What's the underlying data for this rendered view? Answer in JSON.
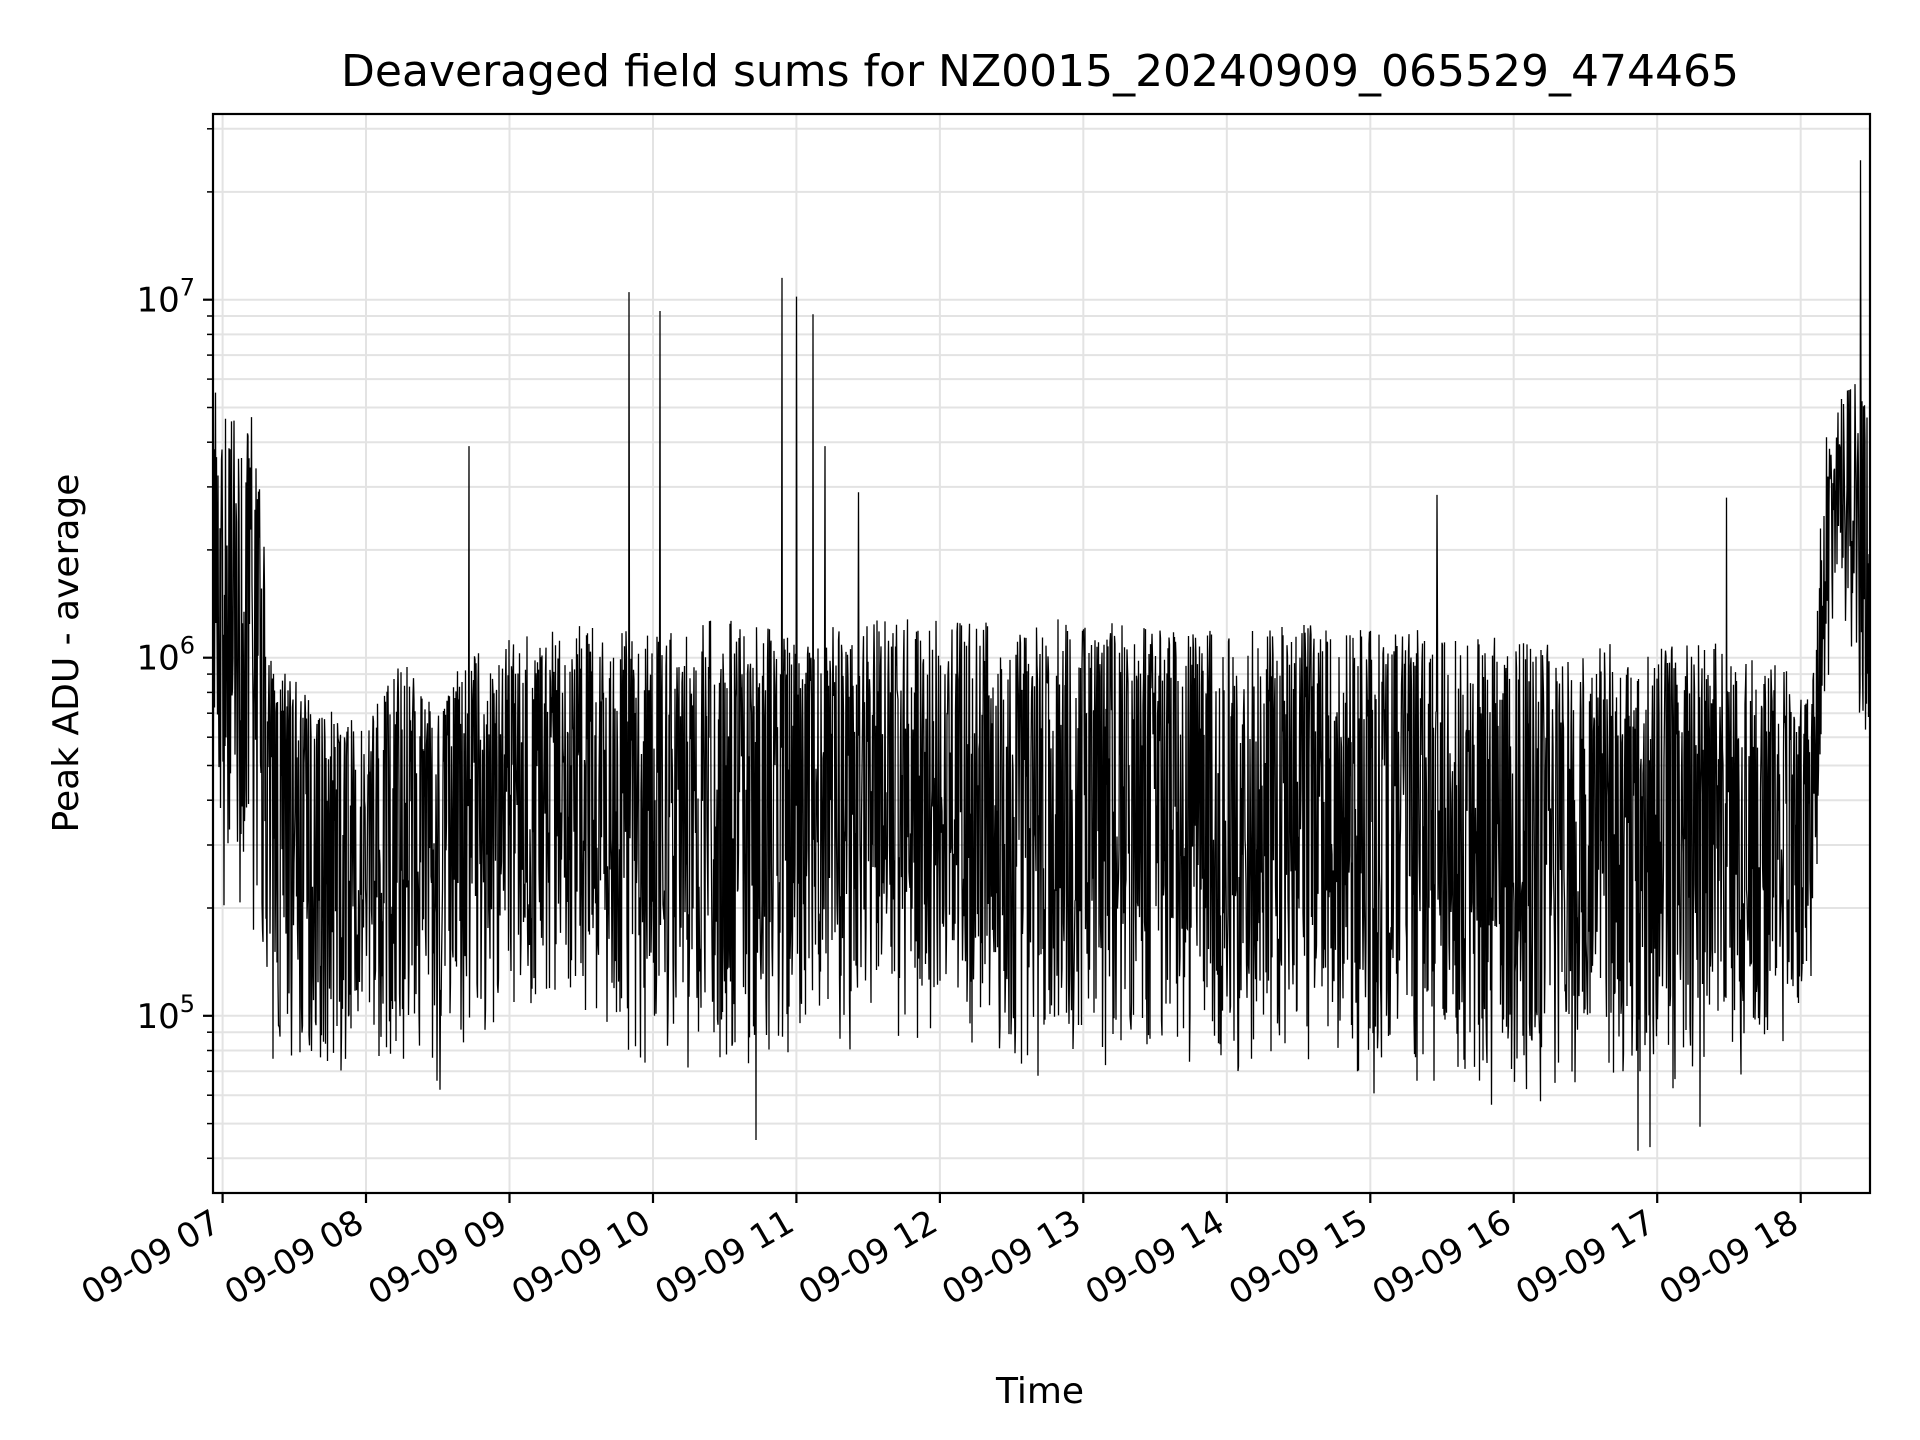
{
  "chart_data": {
    "type": "line",
    "title": "Deaveraged field sums for NZ0015_20240909_065529_474465",
    "xlabel": "Time",
    "ylabel": "Peak ADU - average",
    "yscale": "log",
    "ylim": [
      32000,
      33000000
    ],
    "xlim": [
      "2024-09-09 06:56",
      "2024-09-09 18:29"
    ],
    "grid": true,
    "x_ticks": [
      "09-09 07",
      "09-09 08",
      "09-09 09",
      "09-09 10",
      "09-09 11",
      "09-09 12",
      "09-09 13",
      "09-09 14",
      "09-09 15",
      "09-09 16",
      "09-09 17",
      "09-09 18"
    ],
    "y_ticks": [
      {
        "value": 100000,
        "base": "10",
        "exp": "5"
      },
      {
        "value": 1000000,
        "base": "10",
        "exp": "6"
      },
      {
        "value": 10000000,
        "base": "10",
        "exp": "7"
      }
    ],
    "series": [
      {
        "color": "#000000",
        "band_points": [
          {
            "t": "2024-09-09 06:56",
            "low": 150000,
            "high": 5500000
          },
          {
            "t": "2024-09-09 07:05",
            "low": 180000,
            "high": 4600000
          },
          {
            "t": "2024-09-09 07:15",
            "low": 170000,
            "high": 4000000
          },
          {
            "t": "2024-09-09 07:20",
            "low": 70000,
            "high": 1000000
          },
          {
            "t": "2024-09-09 07:40",
            "low": 65000,
            "high": 750000
          },
          {
            "t": "2024-09-09 08:00",
            "low": 70000,
            "high": 650000
          },
          {
            "t": "2024-09-09 08:15",
            "low": 65000,
            "high": 1000000
          },
          {
            "t": "2024-09-09 08:30",
            "low": 55000,
            "high": 700000
          },
          {
            "t": "2024-09-09 08:40",
            "low": 75000,
            "high": 1000000
          },
          {
            "t": "2024-09-09 09:00",
            "low": 85000,
            "high": 1150000
          },
          {
            "t": "2024-09-09 09:30",
            "low": 100000,
            "high": 1250000
          },
          {
            "t": "2024-09-09 10:00",
            "low": 60000,
            "high": 1150000
          },
          {
            "t": "2024-09-09 10:30",
            "low": 60000,
            "high": 1300000
          },
          {
            "t": "2024-09-09 11:00",
            "low": 70000,
            "high": 1150000
          },
          {
            "t": "2024-09-09 11:30",
            "low": 75000,
            "high": 1300000
          },
          {
            "t": "2024-09-09 12:00",
            "low": 80000,
            "high": 1300000
          },
          {
            "t": "2024-09-09 12:30",
            "low": 65000,
            "high": 1250000
          },
          {
            "t": "2024-09-09 13:00",
            "low": 65000,
            "high": 1300000
          },
          {
            "t": "2024-09-09 13:30",
            "low": 65000,
            "high": 1200000
          },
          {
            "t": "2024-09-09 14:00",
            "low": 60000,
            "high": 1200000
          },
          {
            "t": "2024-09-09 14:30",
            "low": 65000,
            "high": 1250000
          },
          {
            "t": "2024-09-09 15:00",
            "low": 58000,
            "high": 1200000
          },
          {
            "t": "2024-09-09 15:30",
            "low": 60000,
            "high": 1200000
          },
          {
            "t": "2024-09-09 16:00",
            "low": 50000,
            "high": 1150000
          },
          {
            "t": "2024-09-09 16:30",
            "low": 55000,
            "high": 1100000
          },
          {
            "t": "2024-09-09 17:00",
            "low": 55000,
            "high": 1100000
          },
          {
            "t": "2024-09-09 17:30",
            "low": 60000,
            "high": 1100000
          },
          {
            "t": "2024-09-09 18:05",
            "low": 85000,
            "high": 850000
          },
          {
            "t": "2024-09-09 18:10",
            "low": 700000,
            "high": 4000000
          },
          {
            "t": "2024-09-09 18:20",
            "low": 1000000,
            "high": 6500000
          },
          {
            "t": "2024-09-09 18:28",
            "low": 500000,
            "high": 5000000
          }
        ],
        "spikes": [
          {
            "t": "2024-09-09 06:57",
            "value": 5500000
          },
          {
            "t": "2024-09-09 07:12",
            "value": 4700000
          },
          {
            "t": "2024-09-09 08:43",
            "value": 3900000
          },
          {
            "t": "2024-09-09 09:50",
            "value": 10500000
          },
          {
            "t": "2024-09-09 10:03",
            "value": 9300000
          },
          {
            "t": "2024-09-09 10:54",
            "value": 11500000
          },
          {
            "t": "2024-09-09 11:00",
            "value": 10200000
          },
          {
            "t": "2024-09-09 11:07",
            "value": 9100000
          },
          {
            "t": "2024-09-09 11:12",
            "value": 3900000
          },
          {
            "t": "2024-09-09 11:26",
            "value": 2900000
          },
          {
            "t": "2024-09-09 15:28",
            "value": 2850000
          },
          {
            "t": "2024-09-09 17:29",
            "value": 2800000
          },
          {
            "t": "2024-09-09 18:25",
            "value": 24500000
          }
        ],
        "dips": [
          {
            "t": "2024-09-09 10:43",
            "value": 45000
          },
          {
            "t": "2024-09-09 16:52",
            "value": 42000
          },
          {
            "t": "2024-09-09 16:57",
            "value": 43000
          },
          {
            "t": "2024-09-09 17:18",
            "value": 49000
          }
        ]
      }
    ]
  }
}
